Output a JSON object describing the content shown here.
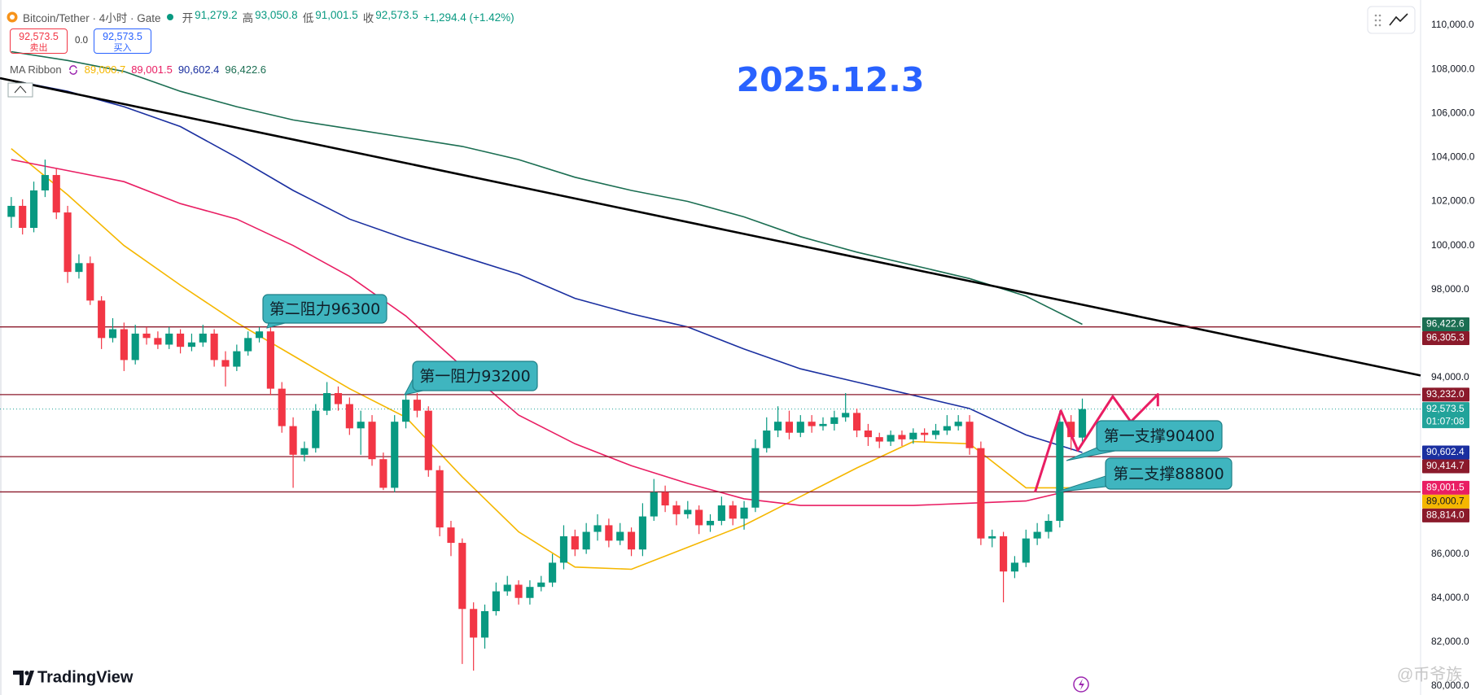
{
  "header": {
    "symbol": "Bitcoin/Tether · 4小时 · Gate",
    "ohlc": [
      {
        "key": "开",
        "value": "91,279.2"
      },
      {
        "key": "高",
        "value": "93,050.8"
      },
      {
        "key": "低",
        "value": "91,001.5"
      },
      {
        "key": "收",
        "value": "92,573.5"
      }
    ],
    "change": "+1,294.4 (+1.42%)"
  },
  "trade": {
    "sell_price": "92,573.5",
    "sell": "卖出",
    "spread": "0.0",
    "buy_price": "92,573.5",
    "buy": "买入"
  },
  "indicator": {
    "name": "MA Ribbon",
    "values": [
      "89,000.7",
      "89,001.5",
      "90,602.4",
      "96,422.6"
    ]
  },
  "chart_data": {
    "type": "candlestick",
    "title": "2025.12.3",
    "up_color": "#089981",
    "down_color": "#f23645",
    "xlim": [
      -1,
      125
    ],
    "ylim": [
      80000,
      110000
    ],
    "yticks": [
      {
        "value": 110000,
        "label": "110,000.0"
      },
      {
        "value": 108000,
        "label": "108,000.0"
      },
      {
        "value": 106000,
        "label": "106,000.0"
      },
      {
        "value": 104000,
        "label": "104,000.0"
      },
      {
        "value": 102000,
        "label": "102,000.0"
      },
      {
        "value": 100000,
        "label": "100,000.0"
      },
      {
        "value": 98000,
        "label": "98,000.0"
      },
      {
        "value": 94000,
        "label": "94,000.0"
      },
      {
        "value": 86000,
        "label": "86,000.0"
      },
      {
        "value": 84000,
        "label": "84,000.0"
      },
      {
        "value": 82000,
        "label": "82,000.0"
      },
      {
        "value": 80000,
        "label": "80,000.0"
      }
    ],
    "grid": false,
    "open": [
      101300,
      101800,
      100800,
      102500,
      103200,
      101500,
      98800,
      99200,
      97500,
      95800,
      96200,
      94800,
      96000,
      95800,
      95500,
      96000,
      95400,
      95600,
      96000,
      94800,
      94500,
      95200,
      95800,
      96100,
      93500,
      91800,
      90500,
      90800,
      92500,
      93300,
      92800,
      91700,
      92000,
      90300,
      89000,
      92000,
      93000,
      92500,
      89800,
      87200,
      86500,
      83500,
      82200,
      83400,
      84300,
      84600,
      84000,
      84500,
      84700,
      85600,
      86800,
      86200,
      87000,
      87300,
      86600,
      87000,
      86200,
      87700,
      88800,
      88200,
      87800,
      88000,
      87300,
      87500,
      88200,
      87600,
      88100,
      90800,
      91600,
      92000,
      91500,
      92000,
      91800,
      91900,
      92200,
      92400,
      91600,
      91300,
      91100,
      91400,
      91200,
      91500,
      91400,
      91600,
      91800,
      92000,
      90800,
      86700,
      86800,
      85200,
      85600,
      86700,
      87000,
      87500,
      92000,
      91279.2
    ],
    "high": [
      102200,
      102100,
      102900,
      103900,
      103500,
      101800,
      99600,
      99500,
      97700,
      96700,
      96500,
      96400,
      96300,
      96100,
      96300,
      96200,
      96000,
      96400,
      96200,
      95200,
      95500,
      96100,
      96300,
      96300,
      93800,
      92200,
      91100,
      92800,
      93800,
      93600,
      93100,
      92500,
      92300,
      90600,
      92300,
      93300,
      93300,
      92700,
      90000,
      87500,
      86700,
      83800,
      83700,
      84700,
      85000,
      84800,
      84800,
      85000,
      86000,
      87300,
      87100,
      87400,
      87800,
      87600,
      87400,
      87200,
      88300,
      89400,
      89100,
      88400,
      88400,
      88200,
      87800,
      88600,
      88400,
      88400,
      91200,
      92200,
      92700,
      92500,
      92300,
      92300,
      92200,
      92500,
      93300,
      92600,
      91900,
      91500,
      91600,
      91600,
      91700,
      91700,
      91900,
      92300,
      92300,
      92300,
      91100,
      87100,
      87000,
      85900,
      87100,
      87400,
      87800,
      92500,
      92300,
      93050.8
    ],
    "low": [
      100800,
      100500,
      100600,
      102200,
      101200,
      98300,
      98500,
      97300,
      95300,
      95600,
      94300,
      94600,
      95500,
      95300,
      95300,
      95100,
      95200,
      95400,
      94500,
      93600,
      94300,
      95000,
      95600,
      93200,
      91500,
      89000,
      90200,
      90600,
      92300,
      92500,
      91400,
      90500,
      90000,
      88900,
      88800,
      91700,
      92200,
      89500,
      86800,
      85900,
      81000,
      80700,
      81700,
      83200,
      84100,
      83700,
      83700,
      84300,
      84500,
      85300,
      85900,
      86000,
      86600,
      86300,
      86400,
      85900,
      85900,
      87500,
      87900,
      87300,
      87600,
      86900,
      87000,
      87300,
      87300,
      87100,
      87900,
      90600,
      91300,
      91200,
      91300,
      91500,
      91600,
      91600,
      92000,
      91300,
      90900,
      90800,
      90900,
      90900,
      91000,
      91100,
      91200,
      91400,
      91600,
      90500,
      86400,
      86300,
      83800,
      84900,
      85400,
      86400,
      86700,
      87200,
      90700,
      91001.5
    ],
    "close": [
      101800,
      100800,
      102500,
      103200,
      101500,
      98800,
      99200,
      97500,
      95800,
      96200,
      94800,
      96000,
      95800,
      95500,
      96000,
      95400,
      95600,
      96000,
      94800,
      94500,
      95200,
      95800,
      96100,
      93500,
      91800,
      90500,
      90800,
      92500,
      93300,
      92800,
      91700,
      92000,
      90300,
      89000,
      92000,
      93000,
      92500,
      89800,
      87200,
      86500,
      83500,
      82200,
      83400,
      84300,
      84600,
      84000,
      84500,
      84700,
      85600,
      86800,
      86200,
      87000,
      87300,
      86600,
      87000,
      86200,
      87700,
      88800,
      88200,
      87800,
      88000,
      87300,
      87500,
      88200,
      87600,
      88100,
      90800,
      91600,
      92000,
      91500,
      92000,
      91800,
      91900,
      92200,
      92400,
      91600,
      91300,
      91100,
      91400,
      91200,
      91500,
      91400,
      91600,
      91800,
      92000,
      90800,
      86700,
      86800,
      85200,
      85600,
      86700,
      87000,
      87500,
      92000,
      91300,
      92573.5
    ],
    "lines": [
      {
        "color": "#f5b700",
        "x": [
          0,
          5,
          10,
          15,
          20,
          25,
          30,
          35,
          40,
          45,
          50,
          55,
          60,
          65,
          70,
          75,
          80,
          85,
          90,
          95
        ],
        "values": [
          104400,
          102300,
          100000,
          98200,
          96500,
          95000,
          93500,
          92200,
          89500,
          87000,
          85400,
          85300,
          86300,
          87300,
          88600,
          89900,
          91100,
          91000,
          89000,
          89000.7
        ]
      },
      {
        "color": "#e91e63",
        "x": [
          0,
          5,
          10,
          15,
          20,
          25,
          30,
          35,
          40,
          45,
          50,
          55,
          60,
          65,
          70,
          75,
          80,
          85,
          90,
          95
        ],
        "values": [
          103900,
          103400,
          102900,
          101900,
          101200,
          100000,
          98600,
          96800,
          94500,
          92300,
          91000,
          90000,
          89200,
          88500,
          88200,
          88200,
          88200,
          88300,
          88400,
          89001.5
        ]
      },
      {
        "color": "#1a2fa0",
        "x": [
          0,
          5,
          10,
          15,
          20,
          25,
          30,
          35,
          40,
          45,
          50,
          55,
          60,
          65,
          70,
          75,
          80,
          85,
          90,
          95
        ],
        "values": [
          107500,
          107000,
          106300,
          105400,
          104000,
          102500,
          101200,
          100300,
          99500,
          98700,
          97600,
          96900,
          96300,
          95300,
          94400,
          93800,
          93200,
          92600,
          91400,
          90602.4
        ]
      },
      {
        "color": "#1b6e52",
        "x": [
          0,
          5,
          10,
          15,
          20,
          25,
          30,
          35,
          40,
          45,
          50,
          55,
          60,
          65,
          70,
          75,
          80,
          85,
          90,
          95
        ],
        "values": [
          108800,
          108400,
          107900,
          107000,
          106300,
          105700,
          105300,
          104900,
          104500,
          103900,
          103100,
          102500,
          102000,
          101300,
          100400,
          99700,
          99100,
          98500,
          97700,
          96422.6
        ]
      }
    ],
    "trendline": {
      "color": "#000000",
      "x": [
        -1,
        125
      ],
      "values": [
        107600,
        94100
      ]
    },
    "projection": {
      "color": "#e91e63",
      "x": [
        90.8,
        93.1,
        94.6,
        97.7,
        99.3,
        101.7,
        101.7
      ],
      "values": [
        88800,
        92500,
        90700,
        93150,
        92000,
        93240,
        92700
      ]
    },
    "price_labels": [
      {
        "value": 96422.6,
        "label": "96,422.6",
        "color": "#1b6e52"
      },
      {
        "value": 96305.3,
        "label": "96,305.3",
        "color": "#8b1a2b",
        "line": "solid"
      },
      {
        "value": 93232.0,
        "label": "93,232.0",
        "color": "#8b1a2b",
        "line": "solid"
      },
      {
        "value": 92573.5,
        "label": "92,573.5",
        "color": "#22a39a",
        "line": "dotted",
        "countdown": "01:07:08"
      },
      {
        "value": 90602.4,
        "label": "90,602.4",
        "color": "#1a2fa0"
      },
      {
        "value": 90414.7,
        "label": "90,414.7",
        "color": "#8b1a2b",
        "line": "solid"
      },
      {
        "value": 89001.5,
        "label": "89,001.5",
        "color": "#e91e63"
      },
      {
        "value": 89000.7,
        "label": "89,000.7",
        "color": "#f5b700"
      },
      {
        "value": 88814.0,
        "label": "88,814.0",
        "color": "#8b1a2b",
        "line": "solid"
      }
    ],
    "annotations": [
      "第二阻力96300",
      "第一阻力93200",
      "第一支撑90400",
      "第二支撑88800"
    ]
  },
  "footer": {
    "logo": "TradingView",
    "watermark": "@币爷族"
  }
}
